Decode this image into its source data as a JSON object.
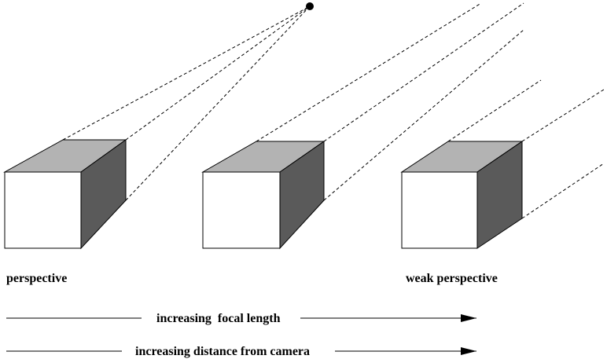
{
  "labels": {
    "perspective": "perspective",
    "weak_perspective": "weak perspective",
    "increasing_focal_length": "increasing  focal length",
    "increasing_distance": "increasing distance from camera"
  },
  "colors": {
    "front_face": "#ffffff",
    "top_face": "#b3b3b3",
    "side_face": "#5a5a5a",
    "line": "#000000"
  }
}
